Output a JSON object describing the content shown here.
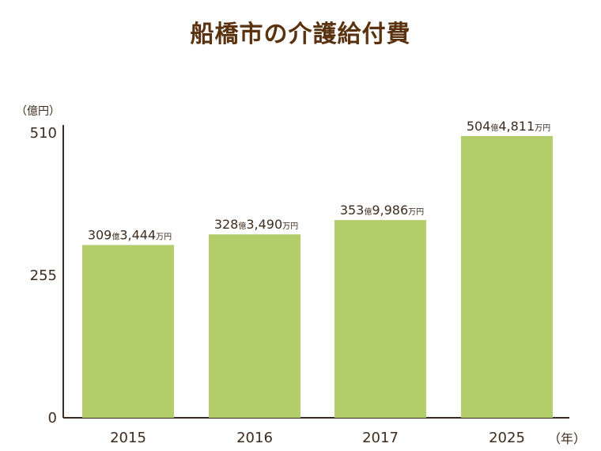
{
  "title": "船橋市の介護給付費",
  "chart_data": {
    "type": "bar",
    "title": "船橋市の介護給付費",
    "ylabel": "（億円）",
    "xlabel": "（年）",
    "categories": [
      "2015",
      "2016",
      "2017",
      "2025"
    ],
    "values": [
      309.3444,
      328.349,
      353.9986,
      504.4811
    ],
    "data_labels": [
      {
        "oku": "309",
        "oku_unit": "億",
        "man": "3,444",
        "man_unit": "万円"
      },
      {
        "oku": "328",
        "oku_unit": "億",
        "man": "3,490",
        "man_unit": "万円"
      },
      {
        "oku": "353",
        "oku_unit": "億",
        "man": "9,986",
        "man_unit": "万円"
      },
      {
        "oku": "504",
        "oku_unit": "億",
        "man": "4,811",
        "man_unit": "万円"
      }
    ],
    "yticks": [
      "0",
      "255",
      "510"
    ],
    "ylim": [
      0,
      510
    ],
    "grid": false,
    "colors": {
      "bar": "#b2cd6a",
      "axis": "#3d2c1e",
      "title": "#5a3210"
    }
  }
}
